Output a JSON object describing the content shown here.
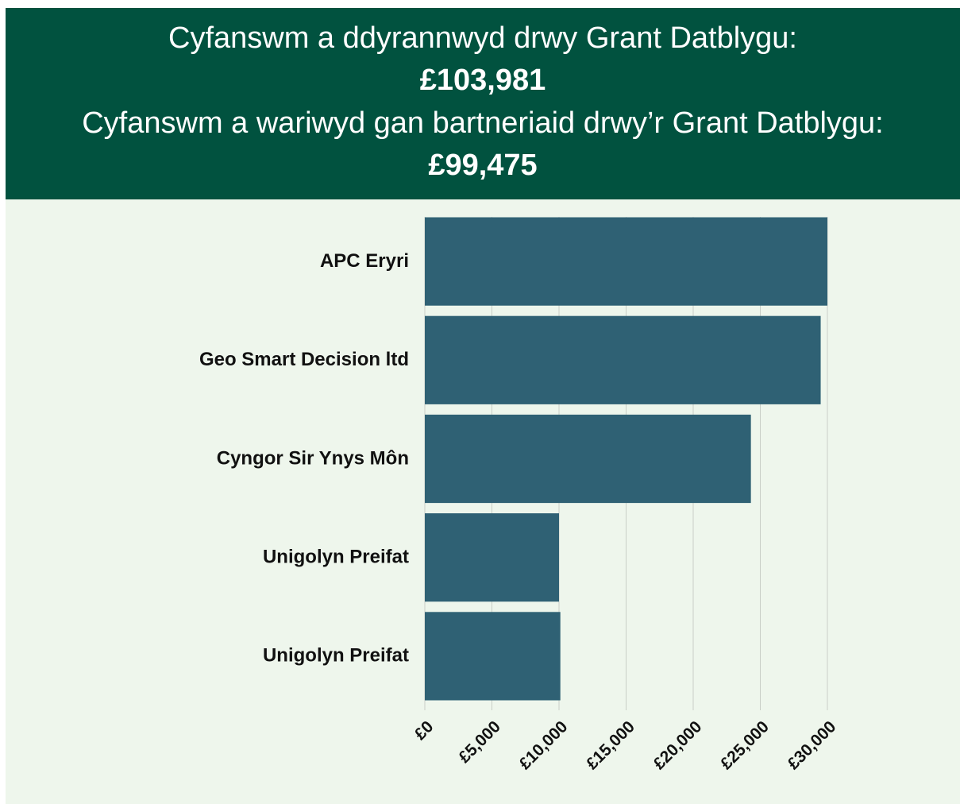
{
  "header": {
    "allocated_label": "Cyfanswm a ddyrannwyd drwy Grant Datblygu:",
    "allocated_value": "£103,981",
    "spent_label": "Cyfanswm a wariwyd gan bartneriaid drwy’r Grant Datblygu:",
    "spent_value": "£99,475"
  },
  "chart_data": {
    "type": "hbar",
    "categories": [
      "APC Eryri",
      "Geo Smart Decision ltd",
      "Cyngor Sir Ynys Môn",
      "Unigolyn Preifat",
      "Unigolyn Preifat"
    ],
    "values": [
      30000,
      29500,
      24300,
      10000,
      10100
    ],
    "color": "#2f6174",
    "xlim": [
      0,
      30000
    ],
    "xticks": [
      {
        "value": 0,
        "label": "£0"
      },
      {
        "value": 5000,
        "label": "£5,000"
      },
      {
        "value": 10000,
        "label": "£10,000"
      },
      {
        "value": 15000,
        "label": "£15,000"
      },
      {
        "value": 20000,
        "label": "£20,000"
      },
      {
        "value": 25000,
        "label": "£25,000"
      },
      {
        "value": 30000,
        "label": "£30,000"
      }
    ],
    "grid": true
  }
}
